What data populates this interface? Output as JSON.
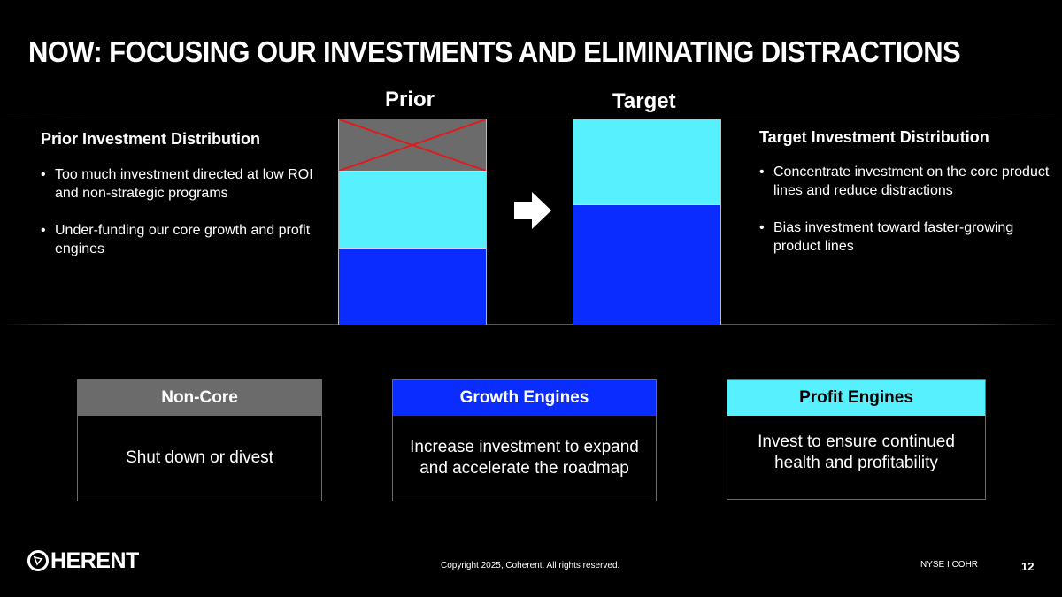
{
  "slide": {
    "title": "NOW: FOCUSING OUR INVESTMENTS AND ELIMINATING DISTRACTIONS",
    "prior_label": "Prior",
    "target_label": "Target"
  },
  "prior": {
    "title": "Prior Investment Distribution",
    "bullets": [
      "Too much investment directed at low ROI and non-strategic programs",
      "Under-funding our core growth and profit engines"
    ]
  },
  "target": {
    "title": "Target Investment Distribution",
    "bullets": [
      "Concentrate investment on the core product lines and reduce distractions",
      "Bias investment toward faster-growing product lines"
    ]
  },
  "colors": {
    "non_core": "#6b6b6b",
    "growth": "#0a2cff",
    "profit": "#56f0ff",
    "cross": "#e01b1b"
  },
  "cards": [
    {
      "heading": "Non-Core",
      "body": "Shut down or divest"
    },
    {
      "heading": "Growth Engines",
      "body": "Increase investment to expand and accelerate the roadmap"
    },
    {
      "heading": "Profit Engines",
      "body": "Invest to ensure continued health and profitability"
    }
  ],
  "footer": {
    "logo": "COHERENT",
    "copyright": "Copyright 2025, Coherent. All rights reserved.",
    "ticker": "NYSE I COHR",
    "page": "12"
  }
}
